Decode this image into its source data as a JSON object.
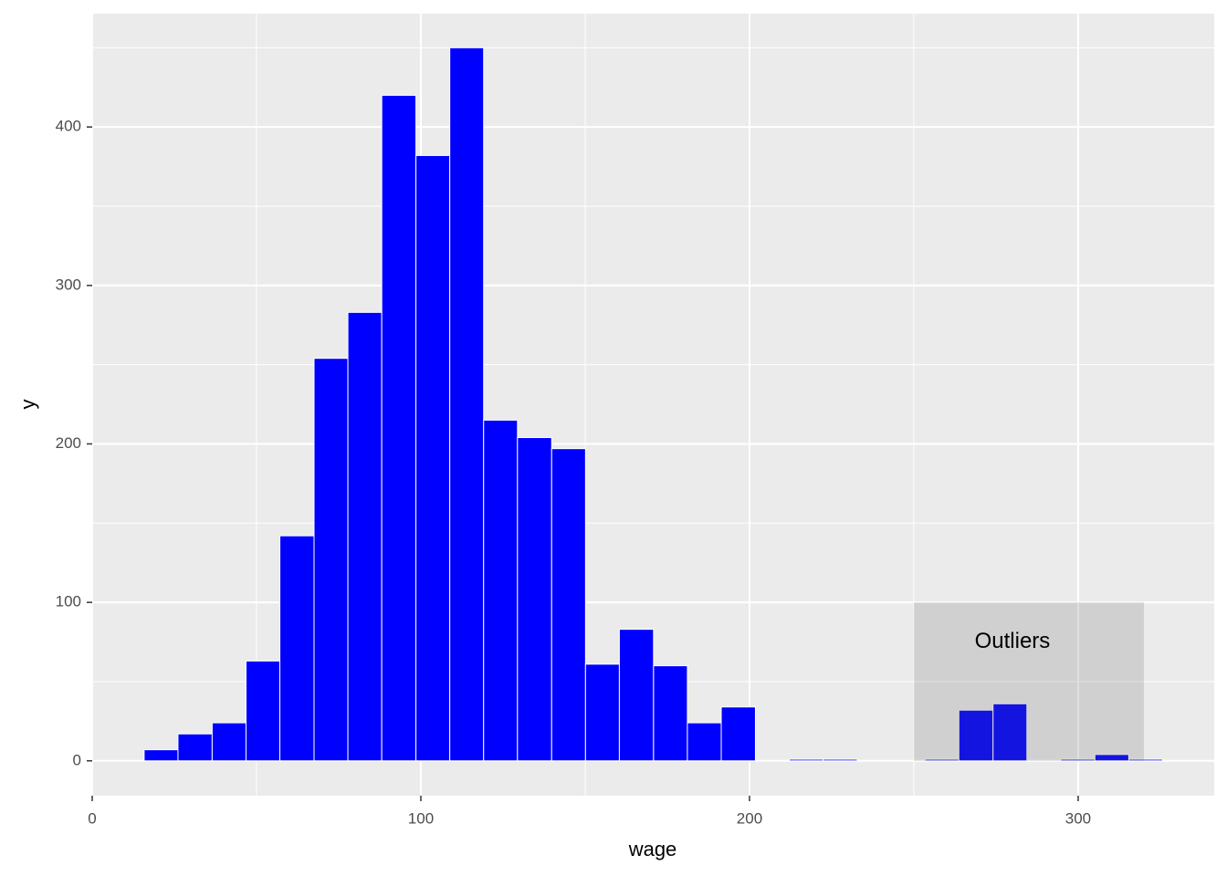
{
  "chart_data": {
    "type": "histogram",
    "x_label": "wage",
    "y_label": "y",
    "bins": [
      15.8,
      26.1,
      36.5,
      46.8,
      57.1,
      67.5,
      77.8,
      88.1,
      98.5,
      108.8,
      119.1,
      129.4,
      139.8,
      150.1,
      160.4,
      170.8,
      181.1,
      191.4,
      201.8,
      212.1,
      222.4,
      232.8,
      243.1,
      253.4,
      263.7,
      274.1,
      284.4,
      294.7,
      305.1,
      315.4,
      325.7
    ],
    "values": [
      7,
      17,
      24,
      63,
      142,
      254,
      283,
      420,
      382,
      450,
      215,
      204,
      197,
      61,
      83,
      60,
      24,
      34,
      0,
      1,
      1,
      0,
      0,
      1,
      32,
      36,
      0,
      1,
      4,
      1
    ],
    "color": "#0000ff",
    "edge_color": "#ffffff",
    "xlim": [
      0,
      341.4
    ],
    "ylim": [
      -22,
      471.5
    ],
    "xticks": [
      0,
      100,
      200,
      300
    ],
    "yticks": [
      0,
      100,
      200,
      300,
      400
    ],
    "grid": true,
    "annotations": [
      {
        "type": "rect",
        "xmin": 250,
        "xmax": 320,
        "ymin": 0,
        "ymax": 100
      },
      {
        "type": "text",
        "x": 280,
        "y": 75,
        "label": "Outliers"
      }
    ]
  }
}
